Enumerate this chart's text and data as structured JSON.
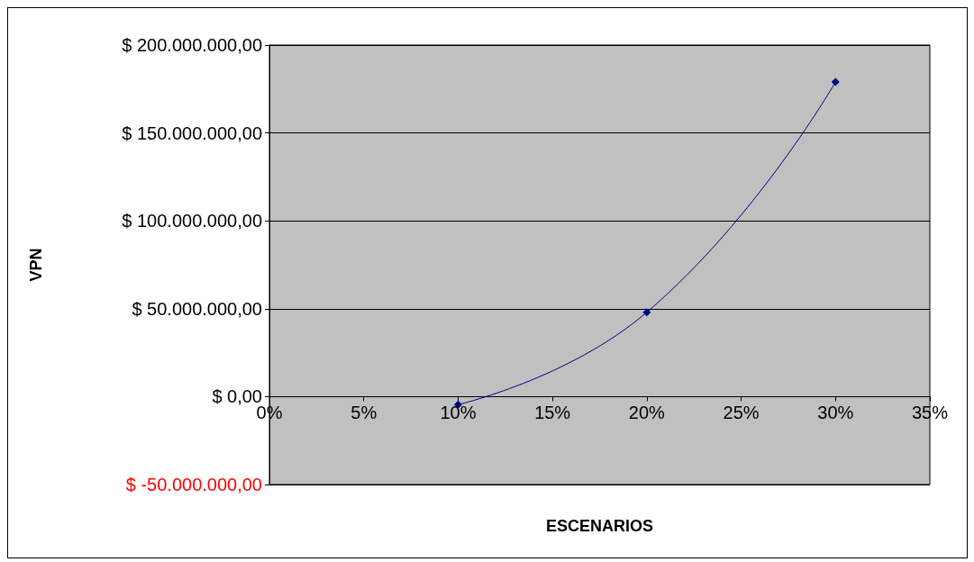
{
  "chart_data": {
    "type": "line",
    "xlabel": "ESCENARIOS",
    "ylabel": "VPN",
    "x": [
      10,
      20,
      30
    ],
    "series": [
      {
        "color": "#000080",
        "values": [
          -4500000,
          48000000,
          179000000
        ]
      }
    ],
    "xlim": [
      0,
      35
    ],
    "xticks": [
      {
        "value": 0,
        "label": "0%"
      },
      {
        "value": 5,
        "label": "5%"
      },
      {
        "value": 10,
        "label": "10%"
      },
      {
        "value": 15,
        "label": "15%"
      },
      {
        "value": 20,
        "label": "20%"
      },
      {
        "value": 25,
        "label": "25%"
      },
      {
        "value": 30,
        "label": "30%"
      },
      {
        "value": 35,
        "label": "35%"
      }
    ],
    "ylim": [
      -50000000,
      200000000
    ],
    "yticks": [
      {
        "value": -50000000,
        "label": "$ -50.000.000,00"
      },
      {
        "value": 0,
        "label": "$ 0,00"
      },
      {
        "value": 50000000,
        "label": "$ 50.000.000,00"
      },
      {
        "value": 100000000,
        "label": "$ 100.000.000,00"
      },
      {
        "value": 150000000,
        "label": "$ 150.000.000,00"
      },
      {
        "value": 200000000,
        "label": "$ 200.000.000,00"
      }
    ],
    "grid": "y",
    "marker": "diamond",
    "line_style": "solid"
  }
}
